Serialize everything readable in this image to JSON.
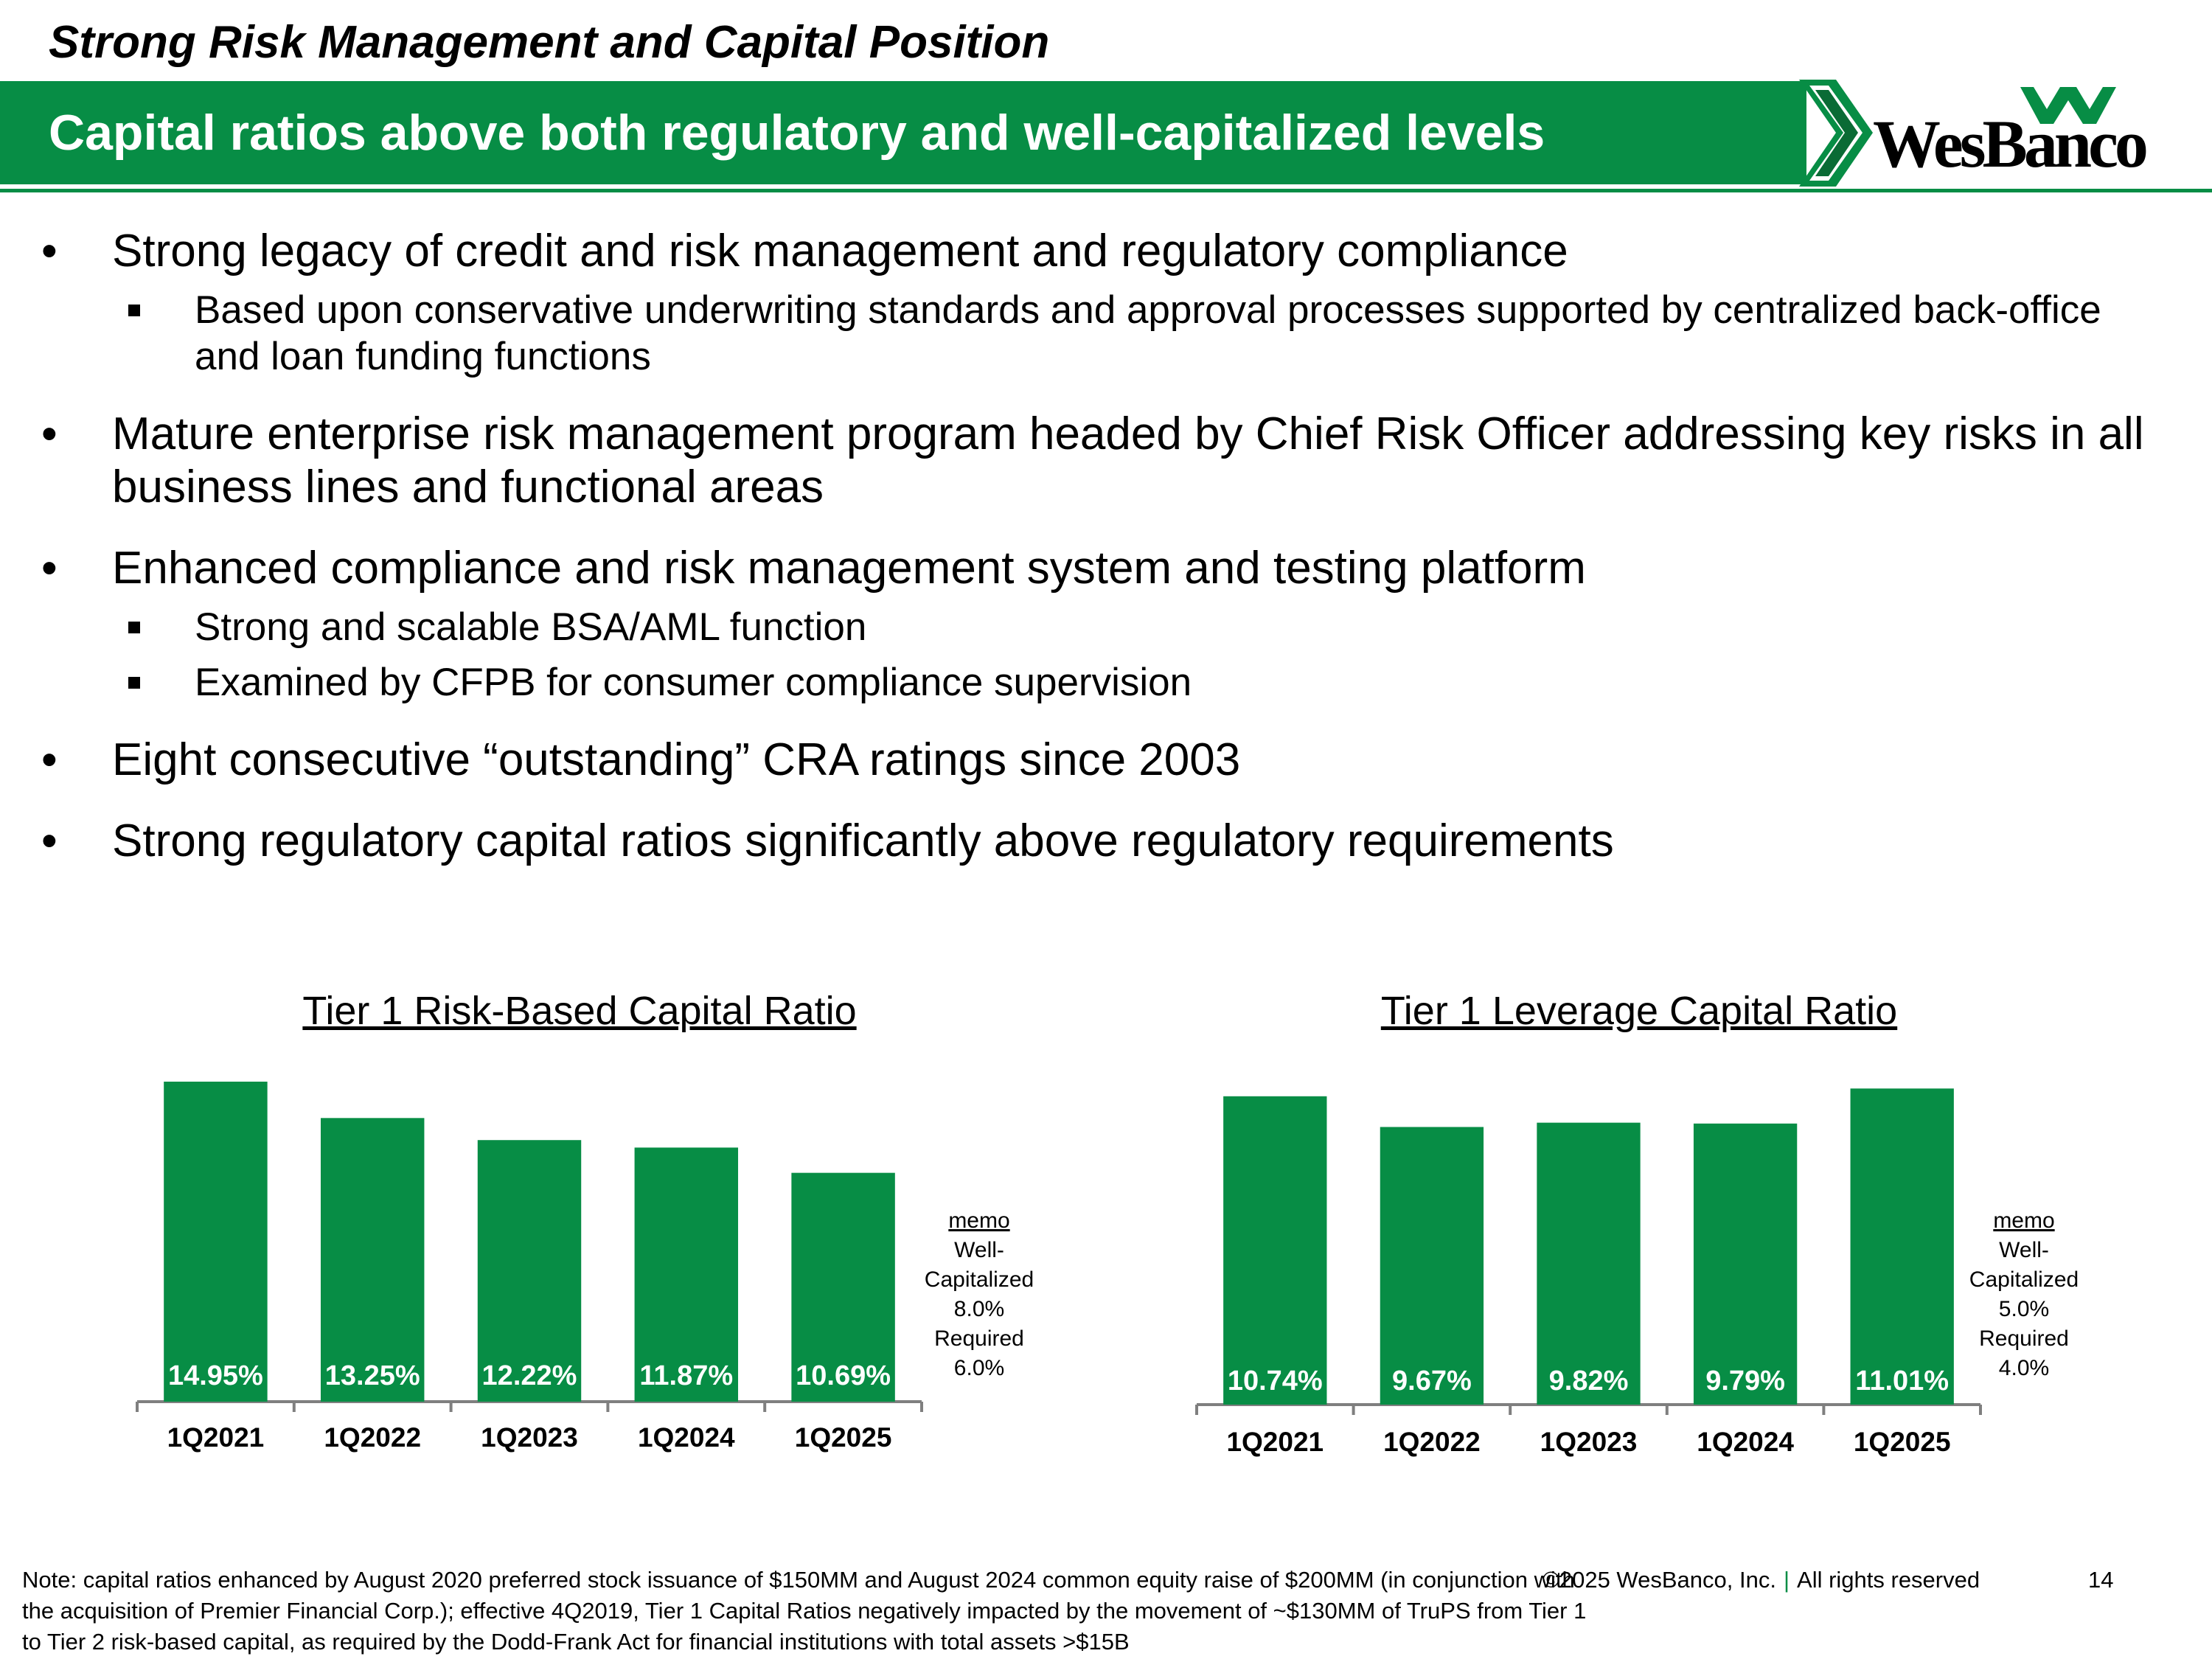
{
  "header": {
    "section_title": "Strong Risk Management and Capital Position",
    "banner_title": "Capital ratios above both regulatory and well-capitalized levels",
    "logo_text": "WesBanco"
  },
  "bullets": [
    {
      "text": "Strong legacy of credit and risk management and regulatory compliance",
      "sub": [
        "Based upon conservative underwriting standards and approval processes supported by centralized back-office and loan funding functions"
      ]
    },
    {
      "text": "Mature enterprise risk management program headed by Chief Risk Officer addressing key risks in all business lines and functional areas",
      "sub": []
    },
    {
      "text": "Enhanced compliance and risk management system and testing platform",
      "sub": [
        "Strong and scalable BSA/AML function",
        "Examined by CFPB for consumer compliance supervision"
      ]
    },
    {
      "text": "Eight consecutive “outstanding” CRA ratings since 2003",
      "sub": []
    },
    {
      "text": "Strong regulatory capital ratios significantly above regulatory requirements",
      "sub": []
    }
  ],
  "chart_data": [
    {
      "type": "bar",
      "title": "Tier 1 Risk-Based Capital Ratio",
      "categories": [
        "1Q2021",
        "1Q2022",
        "1Q2023",
        "1Q2024",
        "1Q2025"
      ],
      "values": [
        14.95,
        13.25,
        12.22,
        11.87,
        10.69
      ],
      "labels": [
        "14.95%",
        "13.25%",
        "12.22%",
        "11.87%",
        "10.69%"
      ],
      "ylim": [
        0,
        15.5
      ],
      "color": "#078d45",
      "memo": {
        "title": "memo",
        "lines": [
          "Well-",
          "Capitalized",
          "8.0%",
          "Required",
          "6.0%"
        ]
      }
    },
    {
      "type": "bar",
      "title": "Tier 1 Leverage Capital Ratio",
      "categories": [
        "1Q2021",
        "1Q2022",
        "1Q2023",
        "1Q2024",
        "1Q2025"
      ],
      "values": [
        10.74,
        9.67,
        9.82,
        9.79,
        11.01
      ],
      "labels": [
        "10.74%",
        "9.67%",
        "9.82%",
        "9.79%",
        "11.01%"
      ],
      "ylim": [
        0,
        11.3
      ],
      "color": "#078d45",
      "memo": {
        "title": "memo",
        "lines": [
          "Well-",
          "Capitalized",
          "5.0%",
          "Required",
          "4.0%"
        ]
      }
    }
  ],
  "footer": {
    "note": "Note: capital ratios enhanced by August 2020 preferred stock issuance of $150MM and August 2024 common equity raise of $200MM (in conjunction with the acquisition of Premier Financial Corp.); effective 4Q2019, Tier 1 Capital Ratios negatively impacted by the movement of ~$130MM of TruPS from Tier 1 to Tier 2 risk-based capital, as required by the Dodd-Frank Act for financial institutions with total assets >$15B",
    "copyright": "©2025 WesBanco, Inc.",
    "separator": "|",
    "rights": "All rights reserved",
    "page": "14"
  }
}
